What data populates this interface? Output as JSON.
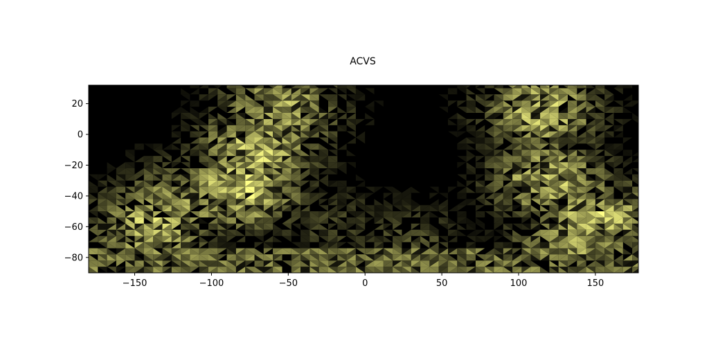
{
  "chart_data": {
    "type": "heatmap",
    "title": "ACVS",
    "xlabel": "",
    "ylabel": "",
    "xlim": [
      -180,
      178
    ],
    "ylim": [
      -90,
      32
    ],
    "x_ticks": [
      -150,
      -100,
      -50,
      0,
      50,
      100,
      150
    ],
    "y_ticks": [
      -80,
      -60,
      -40,
      -20,
      0,
      20
    ],
    "x_tick_labels": [
      "−150",
      "−100",
      "−50",
      "0",
      "50",
      "100",
      "150"
    ],
    "y_tick_labels": [
      "−80",
      "−60",
      "−40",
      "−20",
      "0",
      "20"
    ],
    "colormap": "black-to-yellow",
    "color_low": "#000000",
    "color_high": "#ffff88",
    "grid": false,
    "legend": "none",
    "intensity_regions": [
      {
        "lon": -80,
        "lat": -35,
        "value": 0.95
      },
      {
        "lon": -70,
        "lat": -10,
        "value": 0.9
      },
      {
        "lon": -55,
        "lat": 15,
        "value": 0.8
      },
      {
        "lon": -140,
        "lat": -60,
        "value": 0.85
      },
      {
        "lon": -120,
        "lat": -45,
        "value": 0.7
      },
      {
        "lon": 115,
        "lat": 15,
        "value": 0.85
      },
      {
        "lon": 120,
        "lat": -30,
        "value": 0.85
      },
      {
        "lon": 150,
        "lat": -55,
        "value": 0.9
      },
      {
        "lon": 135,
        "lat": -70,
        "value": 0.75
      },
      {
        "lon": 30,
        "lat": -70,
        "value": 0.35
      },
      {
        "lon": -20,
        "lat": -60,
        "value": 0.3
      },
      {
        "lon": 40,
        "lat": -20,
        "value": 0.05
      }
    ]
  }
}
